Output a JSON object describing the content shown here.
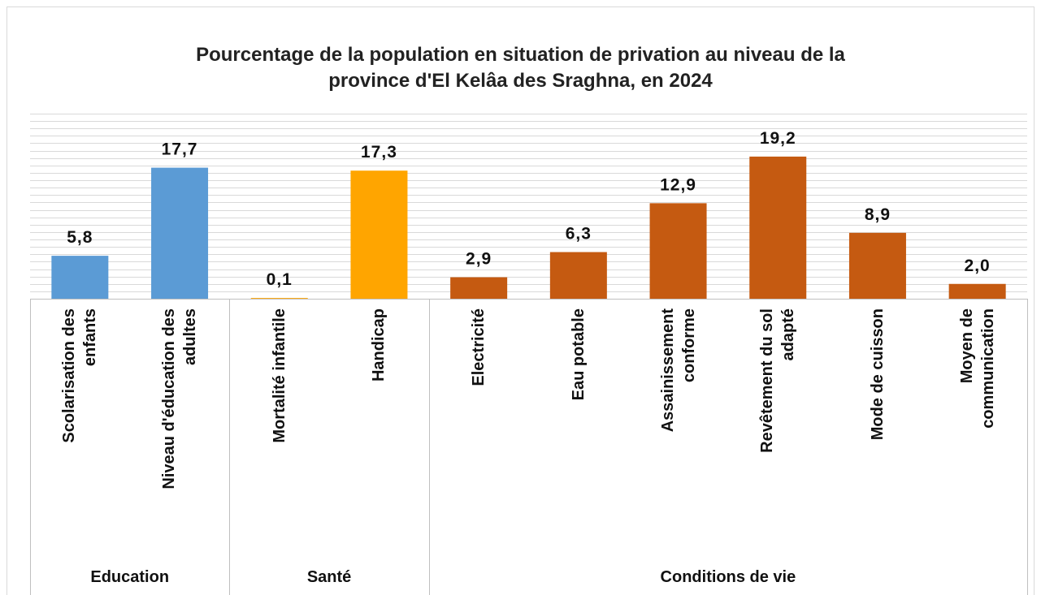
{
  "chart_data": {
    "type": "bar",
    "title": "Pourcentage de la population en situation de privation au niveau de la\nprovince d'El Kelâa des Sraghna, en 2024",
    "series": [
      {
        "name": "Education",
        "color": "#5b9bd5",
        "categories": [
          "Scolarisation des\nenfants",
          "Niveau d'éducation des\nadultes"
        ],
        "values": [
          5.8,
          17.7
        ],
        "value_labels": [
          "5,8",
          "17,7"
        ]
      },
      {
        "name": "Santé",
        "color": "#ffa500",
        "categories": [
          "Mortalité infantile",
          "Handicap"
        ],
        "values": [
          0.1,
          17.3
        ],
        "value_labels": [
          "0,1",
          "17,3"
        ]
      },
      {
        "name": "Conditions de vie",
        "color": "#c55a11",
        "categories": [
          "Electricité",
          "Eau potable",
          "Assainissement\nconforme",
          "Revêtement du sol\nadapté",
          "Mode de cuisson",
          "Moyen de\ncommunication"
        ],
        "values": [
          2.9,
          6.3,
          12.9,
          19.2,
          8.9,
          2.0
        ],
        "value_labels": [
          "2,9",
          "6,3",
          "12,9",
          "19,2",
          "8,9",
          "2,0"
        ]
      }
    ],
    "ylim": [
      0,
      25
    ],
    "yticks": [
      0,
      1,
      2,
      3,
      4,
      5,
      6,
      7,
      8,
      9,
      10,
      11,
      12,
      13,
      14,
      15,
      16,
      17,
      18,
      19,
      20,
      21,
      22,
      23,
      24,
      25
    ],
    "grid": true
  }
}
